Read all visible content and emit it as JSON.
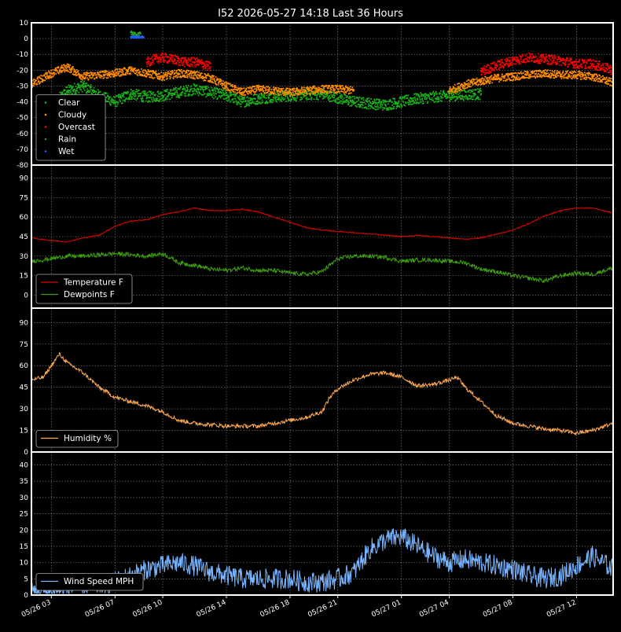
{
  "title": "I52 2026-05-27 14:18 Last 36 Hours",
  "colors": {
    "background": "#000000",
    "frame": "#ffffff",
    "grid": "#888888",
    "clear": "#19b419",
    "cloudy": "#ff8c00",
    "overcast": "#ff0000",
    "rain": "#2ca02c",
    "wet": "#1f5fff",
    "temperature": "#e00000",
    "dewpoint": "#3fa010",
    "humidity": "#ffaa55",
    "wind": "#78b4ff"
  },
  "x_ticks": [
    "05/26 03",
    "05/26 07",
    "05/26 10",
    "05/26 14",
    "05/26 18",
    "05/26 21",
    "05/27 01",
    "05/27 04",
    "05/27 08",
    "05/27 12"
  ],
  "x_tick_hours": [
    3,
    7,
    10,
    14,
    18,
    21,
    25,
    28,
    32,
    36
  ],
  "x_range_hours": [
    1.75,
    38.3
  ],
  "chart_data": [
    {
      "type": "scatter",
      "ylim": [
        -80,
        10
      ],
      "yticks": [
        10,
        0,
        -10,
        -20,
        -30,
        -40,
        -50,
        -60,
        -70,
        -80
      ],
      "grid": true,
      "legend_position": "bottom-left",
      "legend": [
        "Clear",
        "Cloudy",
        "Overcast",
        "Rain",
        "Wet"
      ],
      "series": [
        {
          "name": "Clear",
          "x_hours": [
            3.5,
            4,
            5,
            6,
            7,
            8,
            9,
            10,
            12,
            14,
            15,
            16,
            18,
            20,
            22,
            24,
            26,
            28,
            30
          ],
          "values": [
            -38,
            -33,
            -30,
            -36,
            -40,
            -35,
            -37,
            -36,
            -32,
            -36,
            -40,
            -38,
            -36,
            -35,
            -40,
            -42,
            -38,
            -36,
            -35
          ]
        },
        {
          "name": "Cloudy",
          "x_hours": [
            1.75,
            3,
            4,
            5,
            6,
            7,
            8,
            9,
            10,
            11,
            12,
            13,
            14,
            15,
            16,
            17,
            18,
            19,
            20,
            21,
            22,
            28,
            29,
            30,
            31,
            32,
            33,
            34,
            35,
            36,
            37,
            38.3
          ],
          "values": [
            -29,
            -22,
            -18,
            -24,
            -23,
            -22,
            -20,
            -22,
            -24,
            -22,
            -23,
            -25,
            -30,
            -34,
            -32,
            -33,
            -34,
            -33,
            -32,
            -32,
            -33,
            -33,
            -29,
            -27,
            -25,
            -24,
            -23,
            -22,
            -23,
            -23,
            -24,
            -28
          ]
        },
        {
          "name": "Overcast",
          "x_hours": [
            9.0,
            9.5,
            10,
            10.5,
            11,
            11.5,
            12,
            12.5,
            13,
            30,
            31,
            32,
            33,
            34,
            35,
            36,
            37,
            38.3
          ],
          "values": [
            -15,
            -13,
            -12,
            -13,
            -14,
            -15,
            -15,
            -16,
            -18,
            -21,
            -17,
            -14,
            -12,
            -13,
            -14,
            -16,
            -16,
            -20
          ]
        },
        {
          "name": "Rain",
          "x_hours": [
            8.0,
            8.3,
            8.6
          ],
          "values": [
            4,
            2,
            3
          ]
        },
        {
          "name": "Wet",
          "x_hours": [
            8.0,
            8.2,
            8.4,
            8.6,
            8.8
          ],
          "values": [
            1,
            1,
            1,
            1,
            1
          ]
        }
      ]
    },
    {
      "type": "line",
      "ylim": [
        -10,
        100
      ],
      "yticks": [
        90,
        75,
        60,
        45,
        30,
        15,
        0
      ],
      "grid": true,
      "legend_position": "bottom-left",
      "series": [
        {
          "name": "Temperature F",
          "x_hours": [
            1.75,
            3,
            4,
            5,
            6,
            7,
            8,
            9,
            10,
            11,
            12,
            13,
            14,
            15,
            16,
            17,
            18,
            19,
            20,
            21,
            22,
            23,
            24,
            25,
            26,
            27,
            28,
            29,
            30,
            31,
            32,
            33,
            34,
            35,
            36,
            37,
            38.3
          ],
          "values": [
            44,
            42,
            41,
            44,
            46,
            53,
            57,
            58,
            62,
            64,
            67,
            65,
            65,
            66,
            64,
            60,
            56,
            52,
            50,
            49,
            48,
            47,
            46,
            45,
            46,
            45,
            44,
            43,
            44,
            47,
            50,
            55,
            61,
            65,
            67,
            67,
            63
          ]
        },
        {
          "name": "Dewpoints F",
          "x_hours": [
            1.75,
            3,
            4,
            5,
            6,
            7,
            8,
            9,
            10,
            11,
            12,
            13,
            14,
            15,
            16,
            17,
            18,
            19,
            20,
            21,
            22,
            23,
            24,
            25,
            26,
            27,
            28,
            29,
            30,
            31,
            32,
            33,
            34,
            35,
            36,
            37,
            38.3
          ],
          "values": [
            26,
            28,
            30,
            30,
            31,
            32,
            31,
            30,
            32,
            25,
            23,
            20,
            19,
            21,
            19,
            19,
            17,
            16,
            18,
            28,
            30,
            30,
            29,
            26,
            27,
            27,
            26,
            25,
            20,
            18,
            15,
            13,
            11,
            15,
            17,
            16,
            21
          ]
        }
      ]
    },
    {
      "type": "line",
      "ylim": [
        0,
        100
      ],
      "yticks": [
        90,
        75,
        60,
        45,
        30,
        15,
        0
      ],
      "grid": true,
      "legend_position": "bottom-left",
      "series": [
        {
          "name": "Humidity %",
          "x_hours": [
            1.75,
            2.5,
            3,
            3.5,
            4,
            5,
            6,
            7,
            8,
            9,
            10,
            11,
            12,
            13,
            14,
            15,
            16,
            17,
            18,
            19,
            20,
            20.5,
            21,
            22,
            23,
            24,
            25,
            26,
            27,
            28,
            28.5,
            29,
            30,
            31,
            32,
            33,
            34,
            35,
            36,
            37,
            38.3
          ],
          "values": [
            50,
            52,
            60,
            68,
            62,
            55,
            45,
            38,
            35,
            32,
            28,
            22,
            20,
            19,
            18,
            18,
            18,
            20,
            22,
            24,
            28,
            38,
            44,
            50,
            54,
            55,
            52,
            46,
            47,
            50,
            52,
            45,
            35,
            25,
            20,
            18,
            16,
            15,
            13,
            15,
            20
          ]
        }
      ]
    },
    {
      "type": "line",
      "ylim": [
        0,
        44
      ],
      "yticks": [
        40,
        35,
        30,
        25,
        20,
        15,
        10,
        5,
        0
      ],
      "grid": true,
      "legend_position": "bottom-left",
      "series": [
        {
          "name": "Wind Speed MPH",
          "x_hours": [
            1.75,
            3,
            4,
            5,
            6,
            7,
            8,
            9,
            10,
            11,
            12,
            13,
            14,
            15,
            16,
            17,
            18,
            19,
            20,
            21,
            22,
            23,
            24,
            25,
            26,
            27,
            28,
            29,
            30,
            31,
            32,
            33,
            34,
            35,
            36,
            37,
            38.3
          ],
          "values": [
            1,
            1,
            2,
            3,
            3,
            4,
            6,
            8,
            9,
            10,
            9,
            7,
            6,
            5,
            5,
            5,
            5,
            4,
            4,
            5,
            7,
            14,
            17,
            18,
            15,
            12,
            10,
            11,
            10,
            9,
            8,
            6,
            5,
            6,
            9,
            12,
            8
          ]
        }
      ]
    }
  ]
}
